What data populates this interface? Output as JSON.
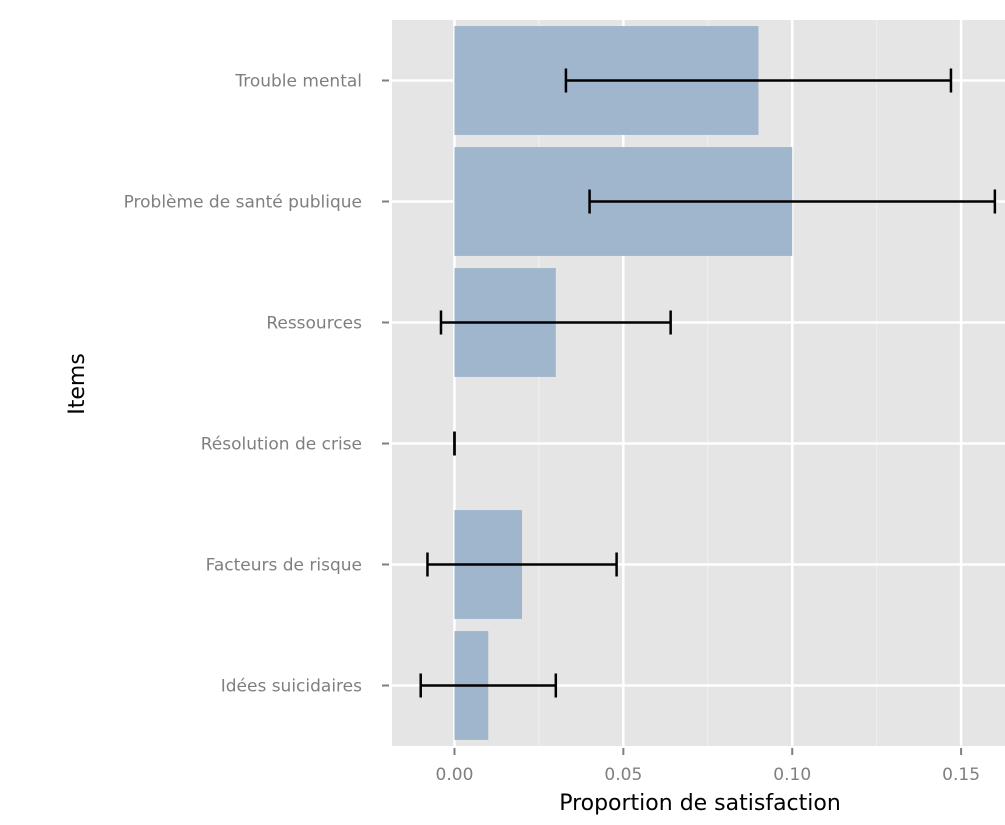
{
  "chart_data": {
    "type": "bar",
    "orientation": "horizontal",
    "xlabel": "Proportion de satisfaction",
    "ylabel": "Items",
    "xlim": [
      -0.0185,
      0.163
    ],
    "x_ticks": [
      0.0,
      0.05,
      0.1,
      0.15
    ],
    "x_tick_labels": [
      "0.00",
      "0.05",
      "0.10",
      "0.15"
    ],
    "categories": [
      "Trouble mental",
      "Problème de santé publique",
      "Ressources",
      "Résolution de crise",
      "Facteurs de risque",
      "Idées suicidaires"
    ],
    "values": [
      0.09,
      0.1,
      0.03,
      0.0,
      0.02,
      0.01
    ],
    "error_low": [
      0.033,
      0.04,
      -0.004,
      0.0,
      -0.008,
      -0.01
    ],
    "error_high": [
      0.147,
      0.16,
      0.064,
      0.0,
      0.048,
      0.03
    ],
    "grid": true,
    "colors": {
      "panel_background": "#e5e5e5",
      "grid_major": "#ffffff",
      "grid_minor": "#f0f0f0",
      "bar_fill": "#a0b6cd",
      "error_bar": "#000000"
    }
  }
}
